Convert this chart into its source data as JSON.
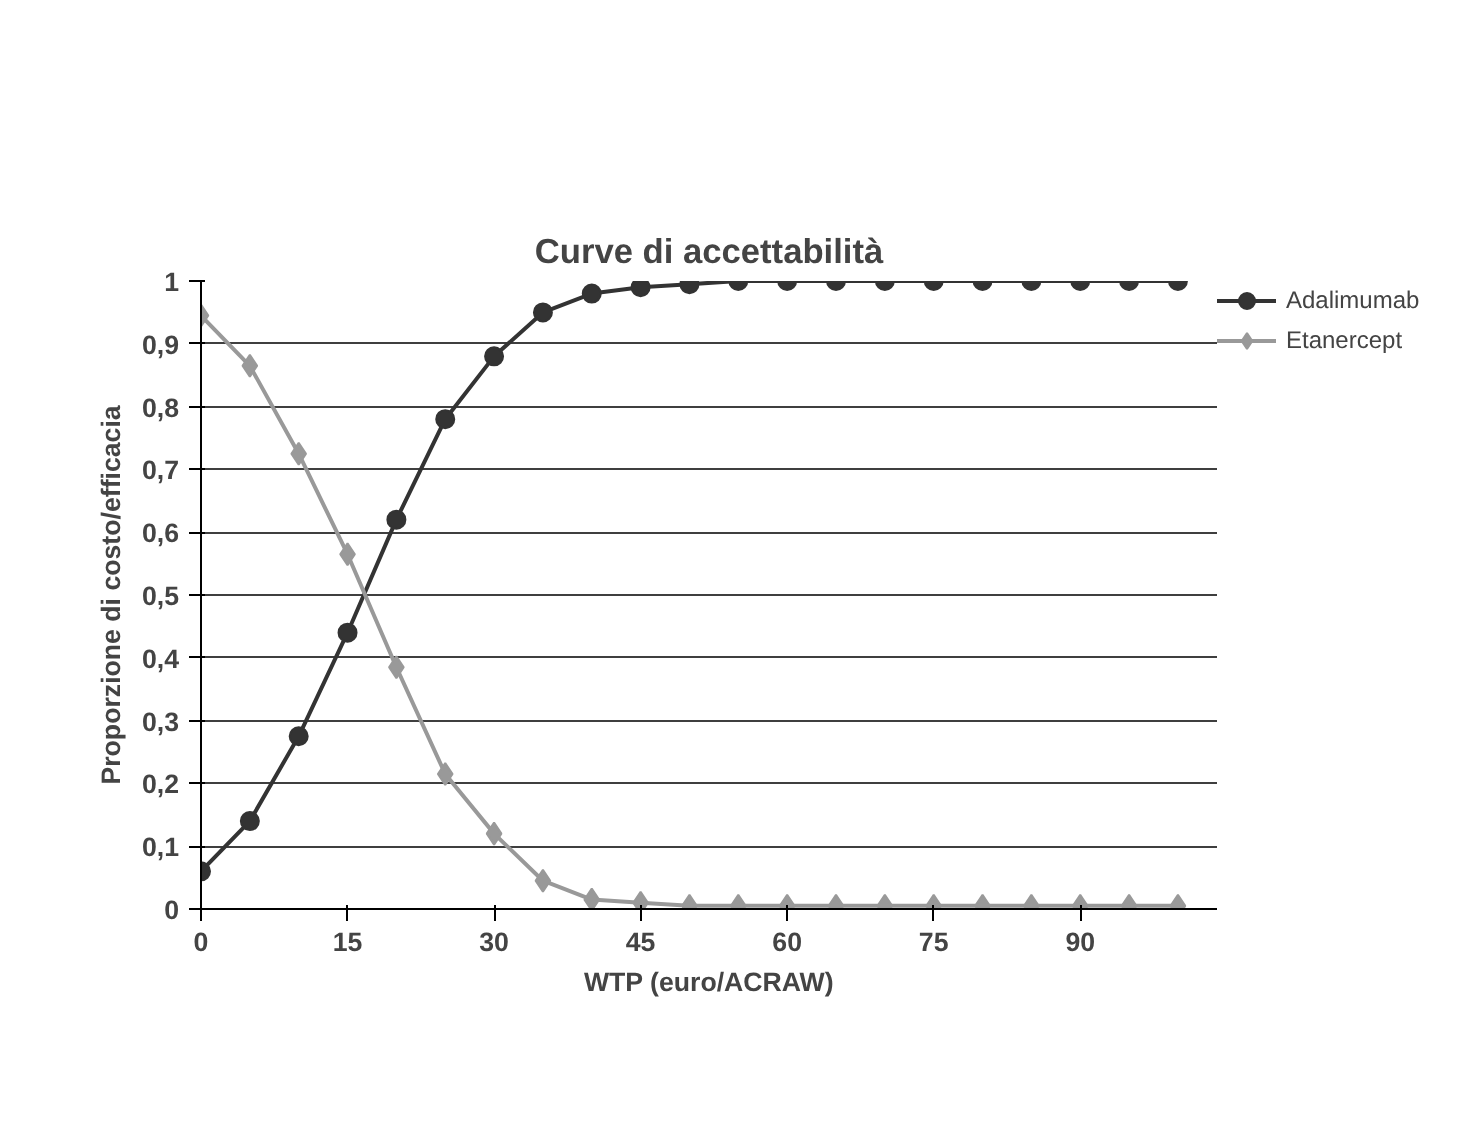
{
  "chart_data": {
    "type": "line",
    "title": "Curve di accettabilità",
    "xlabel": "WTP (euro/ACRAW)",
    "ylabel": "Proporzione di costo/efficacia",
    "x": [
      0,
      5,
      10,
      15,
      20,
      25,
      30,
      35,
      40,
      45,
      50,
      55,
      60,
      65,
      70,
      75,
      80,
      85,
      90,
      95,
      100
    ],
    "series": [
      {
        "name": "Adalimumab",
        "color": "#333333",
        "marker": "circle",
        "values": [
          0.06,
          0.14,
          0.275,
          0.44,
          0.62,
          0.78,
          0.88,
          0.95,
          0.98,
          0.99,
          0.995,
          1,
          1,
          1,
          1,
          1,
          1,
          1,
          1,
          1,
          1
        ]
      },
      {
        "name": "Etanercept",
        "color": "#999999",
        "marker": "diamond",
        "values": [
          0.945,
          0.865,
          0.725,
          0.565,
          0.385,
          0.215,
          0.12,
          0.045,
          0.015,
          0.01,
          0.005,
          0.005,
          0.005,
          0.005,
          0.005,
          0.005,
          0.005,
          0.005,
          0.005,
          0.005,
          0.005
        ]
      }
    ],
    "xlim": [
      0,
      104
    ],
    "xticks": [
      0,
      15,
      30,
      45,
      60,
      75,
      90
    ],
    "ylim": [
      0,
      1
    ],
    "yticks": [
      0,
      {
        "value": 0.1,
        "label": "0,1"
      },
      {
        "value": 0.2,
        "label": "0,2"
      },
      {
        "value": 0.3,
        "label": "0,3"
      },
      {
        "value": 0.4,
        "label": "0,4"
      },
      {
        "value": 0.5,
        "label": "0,5"
      },
      {
        "value": 0.6,
        "label": "0,6"
      },
      {
        "value": 0.7,
        "label": "0,7"
      },
      {
        "value": 0.8,
        "label": "0,8"
      },
      {
        "value": 0.9,
        "label": "0,9"
      },
      1
    ],
    "grid": "y",
    "legend": "top right",
    "line_style": "solid"
  }
}
